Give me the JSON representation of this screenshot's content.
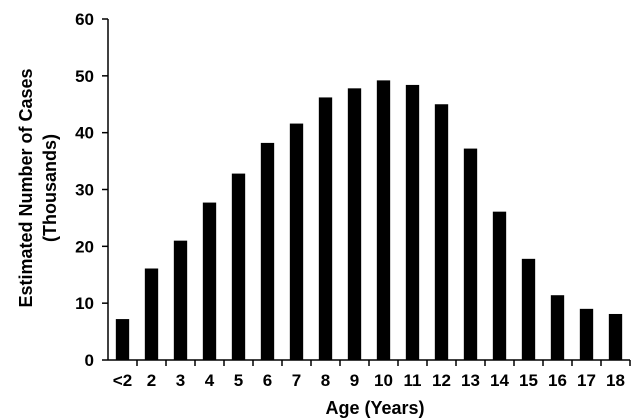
{
  "chart_data": {
    "type": "bar",
    "categories": [
      "<2",
      "2",
      "3",
      "4",
      "5",
      "6",
      "7",
      "8",
      "9",
      "10",
      "11",
      "12",
      "13",
      "14",
      "15",
      "16",
      "17",
      "18"
    ],
    "values": [
      7.2,
      16.1,
      21.0,
      27.7,
      32.8,
      38.2,
      41.6,
      46.2,
      47.8,
      49.2,
      48.4,
      45.0,
      37.2,
      26.1,
      17.8,
      11.4,
      9.0,
      8.1
    ],
    "title": "",
    "xlabel": "Age (Years)",
    "ylabel_line1": "Estimated Number of Cases",
    "ylabel_line2": "(Thousands)",
    "ylim": [
      0,
      60
    ],
    "yticks": [
      0,
      10,
      20,
      30,
      40,
      50,
      60
    ],
    "grid": false,
    "legend": "none",
    "bar_color": "#000000",
    "axis_color": "#000000"
  }
}
